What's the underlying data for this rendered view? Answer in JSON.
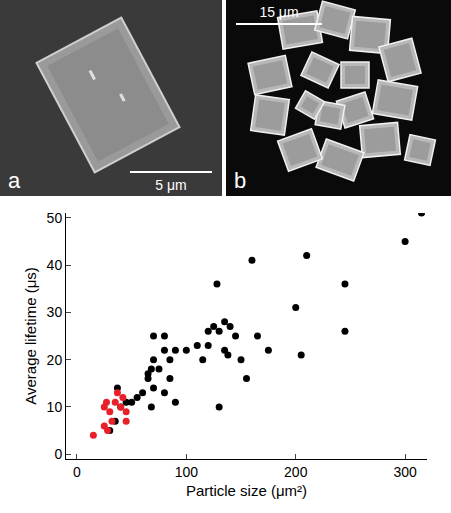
{
  "images": [
    {
      "label": "a",
      "scale_bar": "5 μm"
    },
    {
      "label": "b",
      "scale_bar": "15 μm"
    }
  ],
  "chart_data": {
    "type": "scatter",
    "x_label": "Particle size (μm²)",
    "y_label": "Average lifetime (μs)",
    "xlim": [
      -10,
      320
    ],
    "xticks": [
      0,
      100,
      200,
      300
    ],
    "ylim": [
      -1,
      51
    ],
    "yticks": [
      0,
      10,
      20,
      30,
      40,
      50
    ],
    "grid": false,
    "marker": "circle",
    "series": [
      {
        "color": "#000000",
        "x": [
          30,
          35,
          37,
          40,
          45,
          50,
          55,
          60,
          65,
          65,
          68,
          70,
          70,
          70,
          68,
          75,
          80,
          80,
          80,
          85,
          85,
          90,
          90,
          100,
          110,
          115,
          120,
          120,
          125,
          128,
          130,
          130,
          135,
          135,
          138,
          140,
          145,
          150,
          155,
          160,
          165,
          175,
          200,
          205,
          210,
          245,
          245,
          300,
          315
        ],
        "values": [
          5,
          7,
          14,
          10,
          11,
          11,
          12,
          13,
          17,
          16,
          18,
          25,
          20,
          14,
          10,
          18,
          25,
          22,
          13,
          20,
          16,
          22,
          11,
          22,
          23,
          20,
          23,
          26,
          27,
          36,
          26,
          10,
          28,
          22,
          21,
          27,
          25,
          20,
          16,
          41,
          25,
          22,
          31,
          21,
          42,
          36,
          26,
          45,
          51
        ]
      },
      {
        "color": "#e8202a",
        "x": [
          15,
          25,
          25,
          27,
          30,
          28,
          32,
          35,
          37,
          40,
          42,
          45,
          45
        ],
        "values": [
          4,
          6,
          10,
          11,
          9,
          5,
          7,
          11,
          13,
          10,
          12,
          7,
          9
        ]
      }
    ]
  }
}
